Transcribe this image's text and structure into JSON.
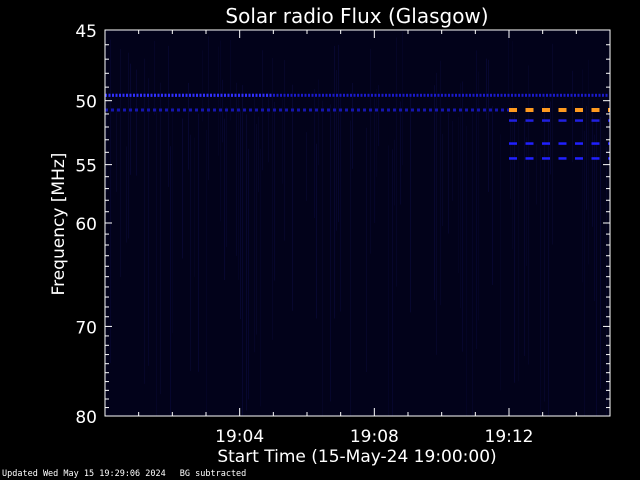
{
  "chart_data": {
    "type": "heatmap",
    "title": "Solar radio Flux (Glasgow)",
    "xlabel": "Start Time (15-May-24 19:00:00)",
    "ylabel": "Frequency [MHz]",
    "x_unit": "time (HH:MM)",
    "xlim": [
      "19:00",
      "19:15"
    ],
    "ylim_top": 45,
    "ylim_bottom": 80,
    "y_scale": "log",
    "x_ticks": [
      "19:04",
      "19:08",
      "19:12"
    ],
    "y_ticks": [
      45,
      50,
      55,
      60,
      70,
      80
    ],
    "background_color": "#02021a",
    "bands": [
      {
        "freq_mhz": 49.6,
        "start": "19:00",
        "end": "19:15",
        "color": "#1a1acc",
        "style": "dense-dotted"
      },
      {
        "freq_mhz": 49.6,
        "start": "19:00",
        "end": "19:05",
        "color": "#3030ff",
        "style": "dense-dotted"
      },
      {
        "freq_mhz": 50.7,
        "start": "19:00",
        "end": "19:12",
        "color": "#1515b0",
        "style": "sparse-dotted"
      },
      {
        "freq_mhz": 50.7,
        "start": "19:12",
        "end": "19:15",
        "color": "#ff9a1f",
        "style": "dashed"
      },
      {
        "freq_mhz": 51.5,
        "start": "19:12",
        "end": "19:15",
        "color": "#2020e0",
        "style": "dashed"
      },
      {
        "freq_mhz": 53.3,
        "start": "19:12",
        "end": "19:15",
        "color": "#2020ff",
        "style": "dashed"
      },
      {
        "freq_mhz": 54.5,
        "start": "19:12",
        "end": "19:15",
        "color": "#2020ff",
        "style": "dashed"
      }
    ]
  },
  "footer": {
    "updated": "Updated Wed May 15 19:29:06 2024",
    "note": "BG subtracted"
  }
}
